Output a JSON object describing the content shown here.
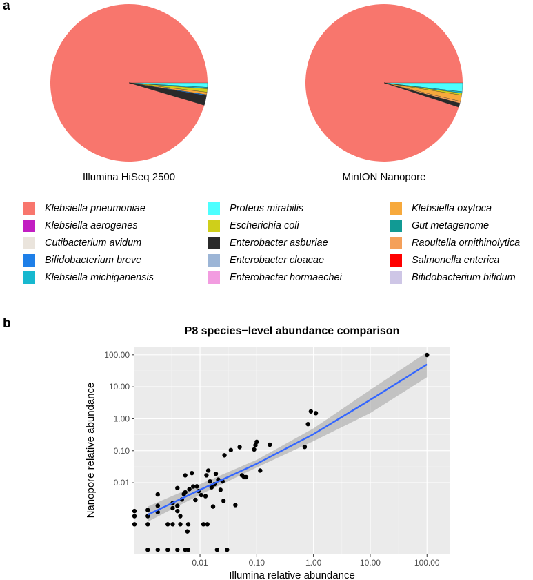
{
  "panels": {
    "a": "a",
    "b": "b"
  },
  "pies": [
    {
      "caption": "Illumina HiSeq 2500",
      "slices": [
        {
          "species": "Klebsiella pneumoniae",
          "value": 95.4
        },
        {
          "species": "Proteus mirabilis",
          "value": 0.9
        },
        {
          "species": "Klebsiella michiganensis",
          "value": 0.3
        },
        {
          "species": "Escherichia coli",
          "value": 0.7
        },
        {
          "species": "Klebsiella oxytoca",
          "value": 0.5
        },
        {
          "species": "Bifidobacterium breve",
          "value": 0.2
        },
        {
          "species": "Enterobacter asburiae",
          "value": 2.0
        }
      ]
    },
    {
      "caption": "MinION Nanopore",
      "slices": [
        {
          "species": "Klebsiella pneumoniae",
          "value": 95.0
        },
        {
          "species": "Proteus mirabilis",
          "value": 1.8
        },
        {
          "species": "Klebsiella michiganensis",
          "value": 0.3
        },
        {
          "species": "Escherichia coli",
          "value": 0.4
        },
        {
          "species": "Klebsiella oxytoca",
          "value": 1.3
        },
        {
          "species": "Raoultella ornithinolytica",
          "value": 0.4
        },
        {
          "species": "Enterobacter asburiae",
          "value": 0.8
        }
      ]
    }
  ],
  "legend": [
    {
      "label": "Klebsiella pneumoniae",
      "color": "#F8766D"
    },
    {
      "label": "Klebsiella aerogenes",
      "color": "#C21EC2"
    },
    {
      "label": "Cutibacterium avidum",
      "color": "#EAE4DC"
    },
    {
      "label": "Bifidobacterium breve",
      "color": "#1E7FE8"
    },
    {
      "label": "Klebsiella michiganensis",
      "color": "#17B8CF"
    },
    {
      "label": "Proteus mirabilis",
      "color": "#4CFFFF"
    },
    {
      "label": "Escherichia coli",
      "color": "#CFCF1A"
    },
    {
      "label": "Enterobacter asburiae",
      "color": "#2A2A2A"
    },
    {
      "label": "Enterobacter cloacae",
      "color": "#9CB5D6"
    },
    {
      "label": "Enterobacter hormaechei",
      "color": "#F29CE0"
    },
    {
      "label": "Klebsiella oxytoca",
      "color": "#F7A93C"
    },
    {
      "label": "Gut metagenome",
      "color": "#119A94"
    },
    {
      "label": "Raoultella ornithinolytica",
      "color": "#F4A05A"
    },
    {
      "label": "Salmonella enterica",
      "color": "#FF0000"
    },
    {
      "label": "Bifidobacterium bifidum",
      "color": "#CEC6E6"
    }
  ],
  "chart_data": {
    "type": "scatter",
    "title": "P8 species−level abundance comparison",
    "xlabel": "Illumina relative abundance",
    "ylabel": "Nanopore relative abundance",
    "xscale": "log10",
    "yscale": "log10",
    "xlim": [
      0.0007,
      250
    ],
    "ylim": [
      6e-05,
      180
    ],
    "xticks": [
      0.01,
      0.1,
      1,
      10,
      100
    ],
    "xticklabels": [
      "0.01",
      "0.10",
      "1.00",
      "10.00",
      "100.00"
    ],
    "yticks": [
      0.01,
      0.1,
      1,
      10,
      100
    ],
    "yticklabels": [
      "0.01",
      "0.10",
      "1.00",
      "10.00",
      "100.00"
    ],
    "grid": true,
    "points": [
      [
        0.0007,
        0.0013
      ],
      [
        0.0007,
        0.0009
      ],
      [
        0.0007,
        0.0005
      ],
      [
        0.0012,
        0.0014
      ],
      [
        0.0012,
        0.0009
      ],
      [
        0.0012,
        0.0005
      ],
      [
        0.0012,
        8e-05
      ],
      [
        0.0018,
        0.0043
      ],
      [
        0.0018,
        0.0019
      ],
      [
        0.0018,
        0.0012
      ],
      [
        0.0018,
        8e-05
      ],
      [
        0.0027,
        0.0005
      ],
      [
        0.0027,
        8e-05
      ],
      [
        0.0033,
        0.0016
      ],
      [
        0.0033,
        0.0023
      ],
      [
        0.0033,
        0.0005
      ],
      [
        0.004,
        0.0068
      ],
      [
        0.004,
        0.0019
      ],
      [
        0.004,
        0.0013
      ],
      [
        0.004,
        8e-05
      ],
      [
        0.0045,
        0.0009
      ],
      [
        0.0045,
        0.0005
      ],
      [
        0.0048,
        0.003
      ],
      [
        0.0052,
        0.0044
      ],
      [
        0.0055,
        0.017
      ],
      [
        0.0055,
        0.005
      ],
      [
        0.0055,
        8e-05
      ],
      [
        0.006,
        0.0003
      ],
      [
        0.0062,
        0.0005
      ],
      [
        0.0062,
        8e-05
      ],
      [
        0.0065,
        0.0063
      ],
      [
        0.0072,
        0.02
      ],
      [
        0.0076,
        0.0076
      ],
      [
        0.0083,
        0.0029
      ],
      [
        0.0088,
        0.0077
      ],
      [
        0.0095,
        0.0055
      ],
      [
        0.0105,
        0.0041
      ],
      [
        0.0115,
        0.0005
      ],
      [
        0.0125,
        0.0038
      ],
      [
        0.013,
        0.017
      ],
      [
        0.0135,
        0.0005
      ],
      [
        0.014,
        0.024
      ],
      [
        0.015,
        0.011
      ],
      [
        0.016,
        0.0072
      ],
      [
        0.017,
        0.0018
      ],
      [
        0.018,
        0.009
      ],
      [
        0.019,
        0.019
      ],
      [
        0.02,
        8e-05
      ],
      [
        0.021,
        0.0125
      ],
      [
        0.023,
        0.006
      ],
      [
        0.025,
        0.011
      ],
      [
        0.026,
        0.0027
      ],
      [
        0.027,
        0.072
      ],
      [
        0.03,
        8e-05
      ],
      [
        0.035,
        0.105
      ],
      [
        0.042,
        0.002
      ],
      [
        0.05,
        0.13
      ],
      [
        0.055,
        0.017
      ],
      [
        0.06,
        0.015
      ],
      [
        0.065,
        0.015
      ],
      [
        0.09,
        0.11
      ],
      [
        0.095,
        0.15
      ],
      [
        0.1,
        0.19
      ],
      [
        0.115,
        0.024
      ],
      [
        0.17,
        0.155
      ],
      [
        0.7,
        0.132
      ],
      [
        0.8,
        0.68
      ],
      [
        0.9,
        1.7
      ],
      [
        1.1,
        1.5
      ],
      [
        100.0,
        99.0
      ]
    ],
    "fit": {
      "x": [
        0.0012,
        0.01,
        0.1,
        1.0,
        10.0,
        100.0
      ],
      "y": [
        0.001,
        0.006,
        0.039,
        0.33,
        3.9,
        50.0
      ],
      "lower": [
        0.0006,
        0.0042,
        0.03,
        0.2,
        1.5,
        20.0
      ],
      "upper": [
        0.0018,
        0.009,
        0.052,
        0.5,
        8.0,
        120.0
      ],
      "color": "#3366FF"
    }
  }
}
